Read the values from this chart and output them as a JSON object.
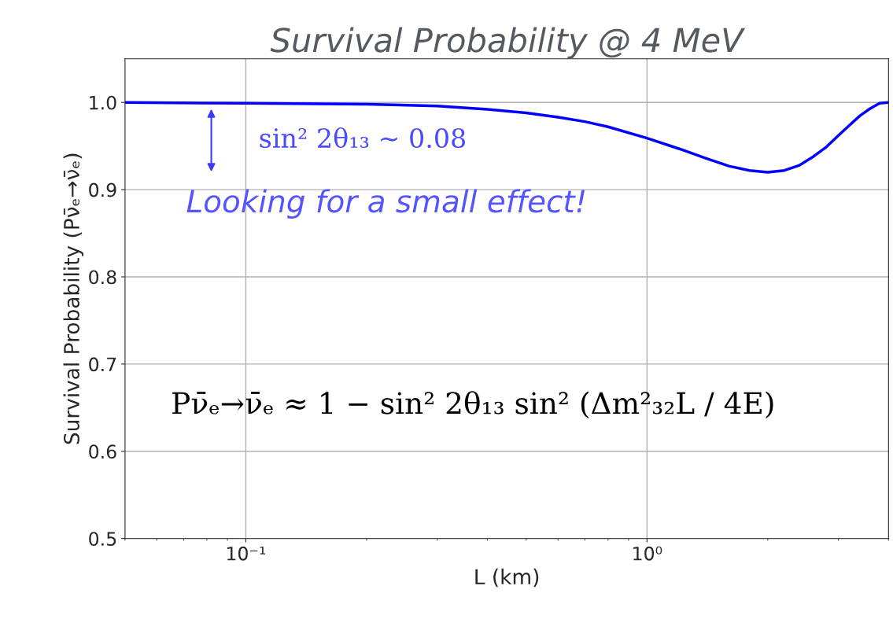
{
  "chart_data": {
    "type": "line",
    "title": "Survival Probability @ 4 MeV",
    "xlabel": "L (km)",
    "ylabel": "Survival Probability (Pν̄ₑ→ν̄ₑ)",
    "x": [
      0.05,
      0.1,
      0.2,
      0.3,
      0.4,
      0.5,
      0.6,
      0.7,
      0.8,
      1.0,
      1.2,
      1.4,
      1.6,
      1.8,
      2.0,
      2.2,
      2.4,
      2.6,
      2.8,
      3.0,
      3.2,
      3.4,
      3.6,
      3.8,
      4.0
    ],
    "series": [
      {
        "color": "#0000ff",
        "values": [
          1.0,
          0.999,
          0.998,
          0.996,
          0.992,
          0.988,
          0.983,
          0.978,
          0.972,
          0.959,
          0.947,
          0.936,
          0.927,
          0.922,
          0.92,
          0.922,
          0.928,
          0.938,
          0.949,
          0.962,
          0.974,
          0.985,
          0.993,
          0.999,
          1.0
        ]
      }
    ],
    "annotations": [
      "sin² 2θ₁₃ ∼ 0.08",
      "Looking for a small effect!",
      "Pν̄ₑ→ν̄ₑ ≈ 1 − sin² 2θ₁₃ sin² (Δm²₃₂L / 4E)"
    ],
    "log": "x",
    "xlim": [
      0.05,
      4
    ],
    "xticks": [
      {
        "value": 0.1,
        "label": "10⁻¹"
      },
      {
        "value": 1,
        "label": "10⁰"
      }
    ],
    "ylim": [
      0.5,
      1.05
    ],
    "yticks": [
      0.5,
      0.6,
      0.7,
      0.8,
      0.9,
      {
        "value": 1,
        "label": "1.0"
      }
    ],
    "grid": true,
    "marker": "none",
    "line_style": "solid"
  }
}
